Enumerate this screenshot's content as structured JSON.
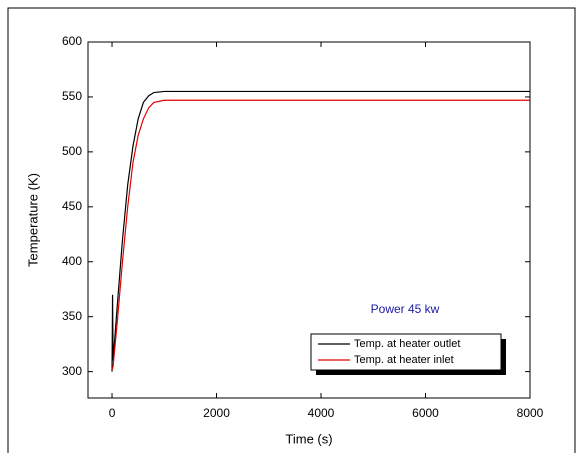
{
  "chart_data": {
    "type": "line",
    "xlabel": "Time (s)",
    "ylabel": "Temperature (K)",
    "annotation": "Power 45 kw",
    "x": [
      0,
      10,
      20,
      100,
      200,
      300,
      400,
      500,
      600,
      700,
      800,
      1000,
      1500,
      8000
    ],
    "series": [
      {
        "name": "Temp. at heater outlet",
        "color": "#000000",
        "values": [
          300,
          370,
          310,
          360,
          420,
          470,
          505,
          530,
          545,
          551,
          554,
          555,
          555,
          555
        ]
      },
      {
        "name": "Temp. at heater inlet",
        "color": "#e00000",
        "values": [
          302,
          303,
          305,
          345,
          400,
          450,
          490,
          515,
          530,
          540,
          545,
          547,
          547,
          547
        ]
      }
    ],
    "xlim": [
      -460,
      8000
    ],
    "xticks": [
      0,
      2000,
      4000,
      6000,
      8000
    ],
    "ylim": [
      276,
      600
    ],
    "yticks": [
      300,
      350,
      400,
      450,
      500,
      550,
      600
    ],
    "annotation_color": "#1a1aa0"
  }
}
